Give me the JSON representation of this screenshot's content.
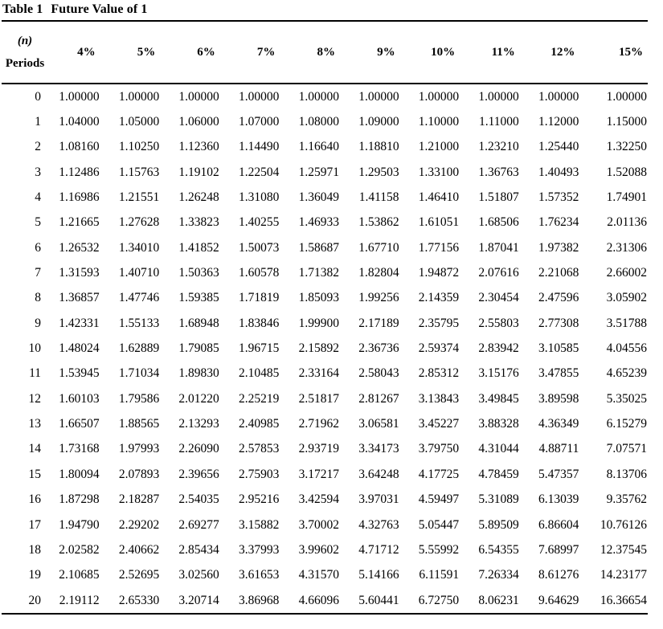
{
  "table": {
    "title_label": "Table 1",
    "title_text": "Future Value of 1",
    "header": {
      "periods_line1": "(n)",
      "periods_line2": "Periods",
      "rates": [
        "4%",
        "5%",
        "6%",
        "7%",
        "8%",
        "9%",
        "10%",
        "11%",
        "12%",
        "15%"
      ]
    },
    "rows": [
      {
        "n": "0",
        "values": [
          "1.00000",
          "1.00000",
          "1.00000",
          "1.00000",
          "1.00000",
          "1.00000",
          "1.00000",
          "1.00000",
          "1.00000",
          "1.00000"
        ]
      },
      {
        "n": "1",
        "values": [
          "1.04000",
          "1.05000",
          "1.06000",
          "1.07000",
          "1.08000",
          "1.09000",
          "1.10000",
          "1.11000",
          "1.12000",
          "1.15000"
        ]
      },
      {
        "n": "2",
        "values": [
          "1.08160",
          "1.10250",
          "1.12360",
          "1.14490",
          "1.16640",
          "1.18810",
          "1.21000",
          "1.23210",
          "1.25440",
          "1.32250"
        ]
      },
      {
        "n": "3",
        "values": [
          "1.12486",
          "1.15763",
          "1.19102",
          "1.22504",
          "1.25971",
          "1.29503",
          "1.33100",
          "1.36763",
          "1.40493",
          "1.52088"
        ]
      },
      {
        "n": "4",
        "values": [
          "1.16986",
          "1.21551",
          "1.26248",
          "1.31080",
          "1.36049",
          "1.41158",
          "1.46410",
          "1.51807",
          "1.57352",
          "1.74901"
        ]
      },
      {
        "n": "5",
        "values": [
          "1.21665",
          "1.27628",
          "1.33823",
          "1.40255",
          "1.46933",
          "1.53862",
          "1.61051",
          "1.68506",
          "1.76234",
          "2.01136"
        ]
      },
      {
        "n": "6",
        "values": [
          "1.26532",
          "1.34010",
          "1.41852",
          "1.50073",
          "1.58687",
          "1.67710",
          "1.77156",
          "1.87041",
          "1.97382",
          "2.31306"
        ]
      },
      {
        "n": "7",
        "values": [
          "1.31593",
          "1.40710",
          "1.50363",
          "1.60578",
          "1.71382",
          "1.82804",
          "1.94872",
          "2.07616",
          "2.21068",
          "2.66002"
        ]
      },
      {
        "n": "8",
        "values": [
          "1.36857",
          "1.47746",
          "1.59385",
          "1.71819",
          "1.85093",
          "1.99256",
          "2.14359",
          "2.30454",
          "2.47596",
          "3.05902"
        ]
      },
      {
        "n": "9",
        "values": [
          "1.42331",
          "1.55133",
          "1.68948",
          "1.83846",
          "1.99900",
          "2.17189",
          "2.35795",
          "2.55803",
          "2.77308",
          "3.51788"
        ]
      },
      {
        "n": "10",
        "values": [
          "1.48024",
          "1.62889",
          "1.79085",
          "1.96715",
          "2.15892",
          "2.36736",
          "2.59374",
          "2.83942",
          "3.10585",
          "4.04556"
        ]
      },
      {
        "n": "11",
        "values": [
          "1.53945",
          "1.71034",
          "1.89830",
          "2.10485",
          "2.33164",
          "2.58043",
          "2.85312",
          "3.15176",
          "3.47855",
          "4.65239"
        ]
      },
      {
        "n": "12",
        "values": [
          "1.60103",
          "1.79586",
          "2.01220",
          "2.25219",
          "2.51817",
          "2.81267",
          "3.13843",
          "3.49845",
          "3.89598",
          "5.35025"
        ]
      },
      {
        "n": "13",
        "values": [
          "1.66507",
          "1.88565",
          "2.13293",
          "2.40985",
          "2.71962",
          "3.06581",
          "3.45227",
          "3.88328",
          "4.36349",
          "6.15279"
        ]
      },
      {
        "n": "14",
        "values": [
          "1.73168",
          "1.97993",
          "2.26090",
          "2.57853",
          "2.93719",
          "3.34173",
          "3.79750",
          "4.31044",
          "4.88711",
          "7.07571"
        ]
      },
      {
        "n": "15",
        "values": [
          "1.80094",
          "2.07893",
          "2.39656",
          "2.75903",
          "3.17217",
          "3.64248",
          "4.17725",
          "4.78459",
          "5.47357",
          "8.13706"
        ]
      },
      {
        "n": "16",
        "values": [
          "1.87298",
          "2.18287",
          "2.54035",
          "2.95216",
          "3.42594",
          "3.97031",
          "4.59497",
          "5.31089",
          "6.13039",
          "9.35762"
        ]
      },
      {
        "n": "17",
        "values": [
          "1.94790",
          "2.29202",
          "2.69277",
          "3.15882",
          "3.70002",
          "4.32763",
          "5.05447",
          "5.89509",
          "6.86604",
          "10.76126"
        ]
      },
      {
        "n": "18",
        "values": [
          "2.02582",
          "2.40662",
          "2.85434",
          "3.37993",
          "3.99602",
          "4.71712",
          "5.55992",
          "6.54355",
          "7.68997",
          "12.37545"
        ]
      },
      {
        "n": "19",
        "values": [
          "2.10685",
          "2.52695",
          "3.02560",
          "3.61653",
          "4.31570",
          "5.14166",
          "6.11591",
          "7.26334",
          "8.61276",
          "14.23177"
        ]
      },
      {
        "n": "20",
        "values": [
          "2.19112",
          "2.65330",
          "3.20714",
          "3.86968",
          "4.66096",
          "5.60441",
          "6.72750",
          "8.06231",
          "9.64629",
          "16.36654"
        ]
      }
    ]
  }
}
